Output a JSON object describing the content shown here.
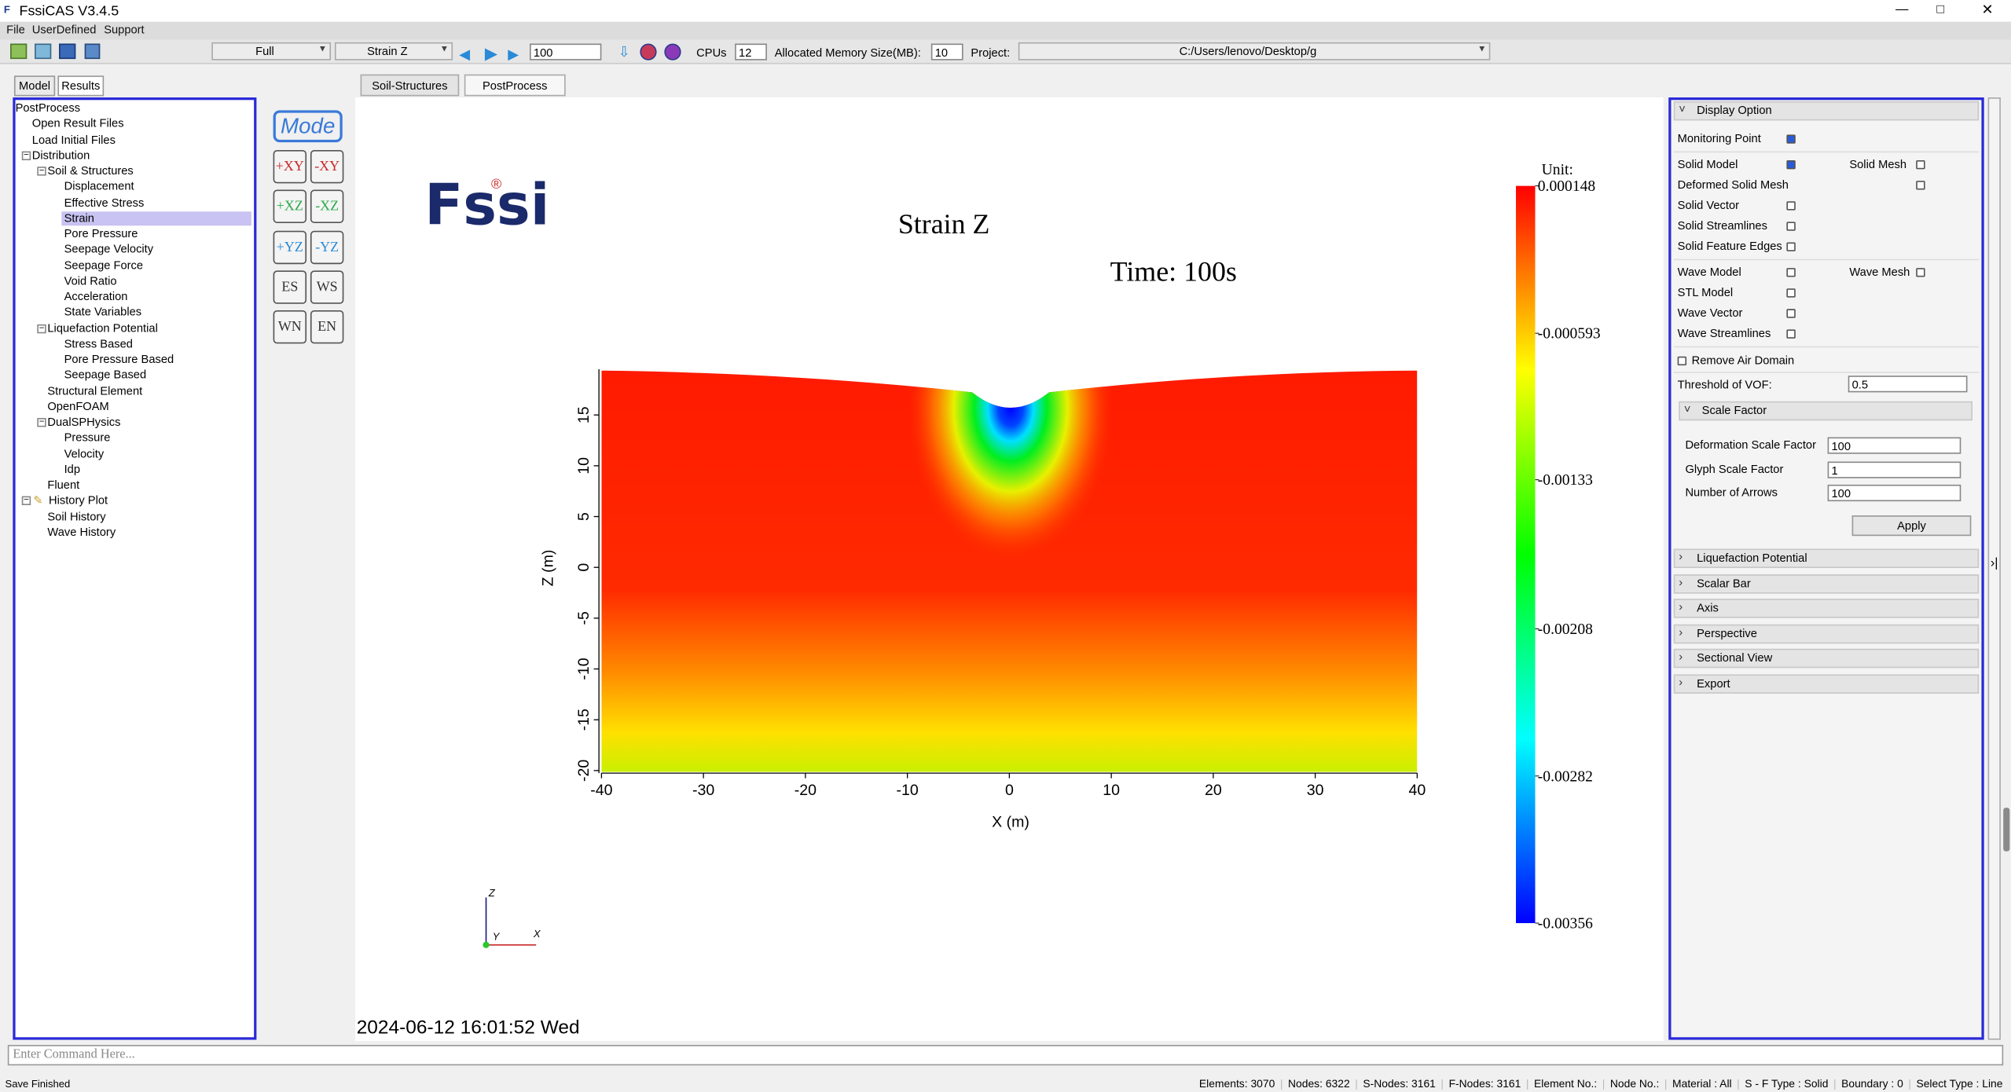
{
  "window": {
    "title": "FssiCAS V3.4.5"
  },
  "menu": [
    "File",
    "UserDefined",
    "Support"
  ],
  "toolbar": {
    "mode": "Full",
    "variable": "Strain Z",
    "step": "100",
    "cpus_label": "CPUs",
    "cpus": "12",
    "memory_label": "Allocated Memory Size(MB):",
    "memory": "10",
    "project_label": "Project:",
    "project": "C:/Users/lenovo/Desktop/g"
  },
  "left_tabs": [
    "Model",
    "Results"
  ],
  "tree": [
    {
      "label": "PostProcess"
    },
    {
      "label": "Open Result Files"
    },
    {
      "label": "Load Initial Files"
    },
    {
      "label": "Distribution"
    },
    {
      "label": "Soil & Structures"
    },
    {
      "label": "Displacement"
    },
    {
      "label": "Effective Stress"
    },
    {
      "label": "Strain",
      "selected": true
    },
    {
      "label": "Pore Pressure"
    },
    {
      "label": "Seepage Velocity"
    },
    {
      "label": "Seepage Force"
    },
    {
      "label": "Void Ratio"
    },
    {
      "label": "Acceleration"
    },
    {
      "label": "State Variables"
    },
    {
      "label": "Liquefaction Potential"
    },
    {
      "label": "Stress Based"
    },
    {
      "label": "Pore Pressure Based"
    },
    {
      "label": "Seepage Based"
    },
    {
      "label": "Structural Element"
    },
    {
      "label": "OpenFOAM"
    },
    {
      "label": "DualSPHysics"
    },
    {
      "label": "Pressure"
    },
    {
      "label": "Velocity"
    },
    {
      "label": "Idp"
    },
    {
      "label": "Fluent"
    },
    {
      "label": "History Plot"
    },
    {
      "label": "Soil History"
    },
    {
      "label": "Wave History"
    }
  ],
  "view_buttons": [
    "Mode",
    "+XY",
    "-XY",
    "+XZ",
    "-XZ",
    "+YZ",
    "-YZ",
    "ES",
    "WS",
    "WN",
    "EN"
  ],
  "tabs": [
    {
      "label": "Soil-Structures"
    },
    {
      "label": "PostProcess",
      "active": true
    }
  ],
  "viewport": {
    "title": "Strain Z",
    "time": "Time: 100s",
    "logo": "Fssi",
    "logo_mark": "®",
    "timestamp": "2024-06-12 16:01:52 Wed",
    "plot": {
      "xlim": [
        -40,
        40
      ],
      "ylim": [
        -20,
        19.5
      ],
      "xticks": [
        -40,
        -30,
        -20,
        -10,
        0,
        10,
        20,
        30,
        40
      ],
      "yticks": [
        -20,
        -15,
        -10,
        -5,
        0,
        5,
        10,
        15
      ],
      "x_label": "X (m)",
      "y_label": "Z (m)"
    },
    "colorbar": {
      "unit": "Unit:",
      "lim": [
        -0.00356,
        0.000148
      ],
      "ticks": [
        0.000148,
        -0.000593,
        -0.00133,
        -0.00208,
        -0.00282,
        -0.00356
      ]
    },
    "triad": [
      "Z",
      "Y",
      "X"
    ]
  },
  "display_option": {
    "header": "Display Option",
    "options": [
      {
        "label": "Monitoring Point",
        "checked": true
      },
      {
        "label": "Solid Model",
        "checked": true
      },
      {
        "label": "Solid Mesh",
        "checked": false
      },
      {
        "label": "Deformed Solid Mesh",
        "checked": false
      },
      {
        "label": "Solid Vector",
        "checked": false
      },
      {
        "label": "Solid Streamlines",
        "checked": false
      },
      {
        "label": "Solid Feature Edges",
        "checked": false
      },
      {
        "label": "Wave Model",
        "checked": false
      },
      {
        "label": "Wave Mesh",
        "checked": false
      },
      {
        "label": "STL Model",
        "checked": false
      },
      {
        "label": "Wave Vector",
        "checked": false
      },
      {
        "label": "Wave Streamlines",
        "checked": false
      }
    ],
    "remove_air": {
      "label": "Remove Air Domain",
      "checked": false
    },
    "threshold": {
      "label": "Threshold of VOF:",
      "value": "0.5"
    },
    "scale_factor": {
      "header": "Scale Factor",
      "fields": [
        {
          "label": "Deformation Scale Factor",
          "value": "100"
        },
        {
          "label": "Glyph Scale Factor",
          "value": "1"
        },
        {
          "label": "Number of Arrows",
          "value": "100"
        }
      ],
      "apply": "Apply"
    },
    "sections": [
      "Liquefaction Potential",
      "Scalar Bar",
      "Axis",
      "Perspective",
      "Sectional View",
      "Export"
    ]
  },
  "command": {
    "placeholder": "Enter Command Here..."
  },
  "status": {
    "message": "Save Finished",
    "fields": [
      "Elements: 3070",
      "Nodes: 6322",
      "S-Nodes: 3161",
      "F-Nodes: 3161",
      "Element No.:",
      "Node No.:",
      "Material :  All",
      "S - F Type :  Solid",
      "Boundary :  0",
      "Select Type :  Line"
    ]
  }
}
